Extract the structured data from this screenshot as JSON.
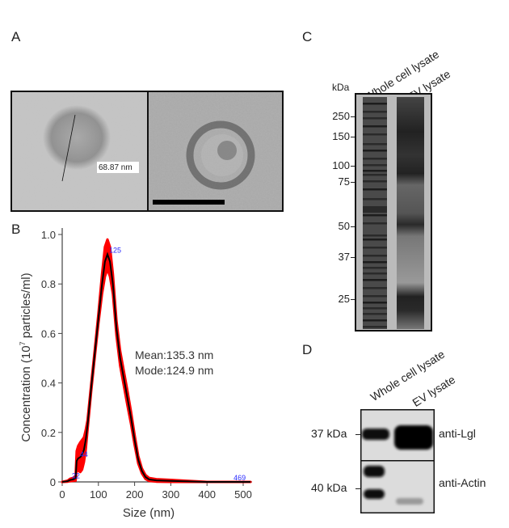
{
  "panels": {
    "a": {
      "label": "A",
      "measurement": "68.87 nm"
    },
    "b": {
      "label": "B",
      "stats": {
        "mean": "Mean:135.3 nm",
        "mode": "Mode:124.9 nm"
      }
    },
    "c": {
      "label": "C",
      "unit": "kDa",
      "lanes": [
        "Whole cell lysate",
        "EV lysate"
      ],
      "markers": [
        "250",
        "150",
        "100",
        "75",
        "50",
        "37",
        "25"
      ]
    },
    "d": {
      "label": "D",
      "lanes": [
        "Whole cell lysate",
        "EV lysate"
      ],
      "markers": [
        "37 kDa",
        "40 kDa"
      ],
      "antibodies": [
        "anti-Lgl",
        "anti-Actin"
      ]
    }
  },
  "chart_data": {
    "type": "line",
    "title": "",
    "xlabel": "Size (nm)",
    "ylabel_prefix": "Concentration (10",
    "ylabel_sup": "7",
    "ylabel_suffix": " particles/ml)",
    "xlim": [
      0,
      520
    ],
    "ylim": [
      0,
      1.0
    ],
    "xticks": [
      0,
      100,
      200,
      300,
      400,
      500
    ],
    "yticks": [
      0,
      0.2,
      0.4,
      0.6,
      0.8,
      1.0
    ],
    "ytick_labels": [
      "0",
      "0.2",
      "0.4",
      "0.6",
      "0.8",
      "1.0"
    ],
    "grid": false,
    "series": [
      {
        "color": "#000000",
        "error_band_color": "#ff0000",
        "x": [
          0,
          15,
          22,
          30,
          37,
          40,
          44,
          50,
          55,
          60,
          65,
          70,
          80,
          90,
          100,
          110,
          118,
          125,
          132,
          140,
          150,
          160,
          170,
          180,
          190,
          200,
          210,
          220,
          230,
          240,
          260,
          300,
          350,
          400,
          450,
          520
        ],
        "y": [
          0,
          0.003,
          0.008,
          0.01,
          0.015,
          0.085,
          0.095,
          0.1,
          0.11,
          0.13,
          0.17,
          0.23,
          0.38,
          0.52,
          0.66,
          0.8,
          0.89,
          0.92,
          0.89,
          0.8,
          0.62,
          0.5,
          0.42,
          0.34,
          0.26,
          0.17,
          0.09,
          0.045,
          0.02,
          0.01,
          0.006,
          0.004,
          0.002,
          0.0,
          0.0,
          0.0
        ],
        "error": [
          0,
          0.002,
          0.005,
          0.006,
          0.01,
          0.04,
          0.05,
          0.06,
          0.06,
          0.05,
          0.04,
          0.02,
          0.015,
          0.015,
          0.02,
          0.04,
          0.06,
          0.06,
          0.06,
          0.04,
          0.03,
          0.03,
          0.03,
          0.03,
          0.025,
          0.02,
          0.015,
          0.01,
          0.008,
          0.006,
          0.005,
          0.004,
          0.002,
          0.0,
          0.0,
          0.0
        ]
      }
    ],
    "peak_labels": [
      {
        "x": 125,
        "y": 0.92,
        "text": "125"
      },
      {
        "x": 44,
        "y": 0.095,
        "text": "44"
      },
      {
        "x": 22,
        "y": 0.008,
        "text": "22"
      },
      {
        "x": 469,
        "y": 0.0,
        "text": "469"
      }
    ],
    "peak_label_color": "#2a2aff"
  }
}
